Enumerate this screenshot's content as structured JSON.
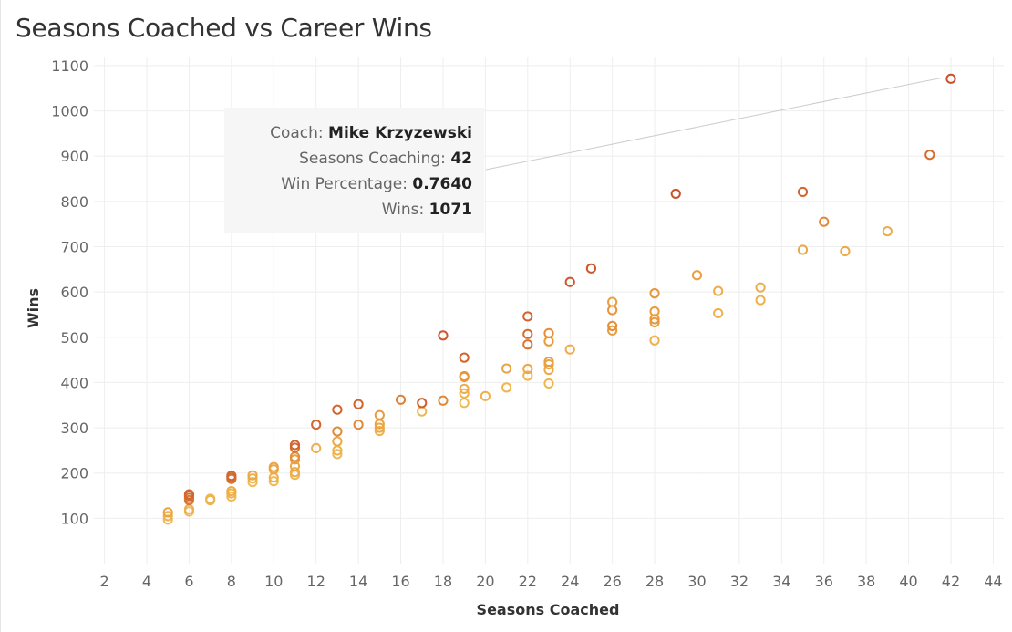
{
  "title": "Seasons Coached vs Career Wins",
  "chart_data": {
    "type": "scatter",
    "title": "Seasons Coached vs Career Wins",
    "xlabel": "Seasons Coached",
    "ylabel": "Wins",
    "xlim": [
      1.5,
      44.5
    ],
    "ylim": [
      0,
      1120
    ],
    "x_ticks": [
      2,
      4,
      6,
      8,
      10,
      12,
      14,
      16,
      18,
      20,
      22,
      24,
      26,
      28,
      30,
      32,
      34,
      36,
      38,
      40,
      42,
      44
    ],
    "y_ticks": [
      100,
      200,
      300,
      400,
      500,
      600,
      700,
      800,
      900,
      1000,
      1100
    ],
    "grid": true,
    "legend": "none",
    "marker": "hollow circle",
    "color_encoding": "win percentage (light yellow = lower, dark red = higher)",
    "colors": {
      "low": "#f2c35a",
      "mid": "#e8963a",
      "high": "#c9502a"
    },
    "points": [
      {
        "x": 5,
        "y": 97,
        "c": 0.1
      },
      {
        "x": 5,
        "y": 105,
        "c": 0.2
      },
      {
        "x": 5,
        "y": 113,
        "c": 0.35
      },
      {
        "x": 6,
        "y": 115,
        "c": 0.1
      },
      {
        "x": 6,
        "y": 120,
        "c": 0.2
      },
      {
        "x": 6,
        "y": 140,
        "c": 0.7
      },
      {
        "x": 6,
        "y": 145,
        "c": 0.75
      },
      {
        "x": 6,
        "y": 150,
        "c": 0.8
      },
      {
        "x": 6,
        "y": 153,
        "c": 0.85
      },
      {
        "x": 7,
        "y": 140,
        "c": 0.2
      },
      {
        "x": 7,
        "y": 143,
        "c": 0.15
      },
      {
        "x": 8,
        "y": 148,
        "c": 0.1
      },
      {
        "x": 8,
        "y": 155,
        "c": 0.2
      },
      {
        "x": 8,
        "y": 160,
        "c": 0.25
      },
      {
        "x": 8,
        "y": 187,
        "c": 0.75
      },
      {
        "x": 8,
        "y": 190,
        "c": 0.8
      },
      {
        "x": 8,
        "y": 194,
        "c": 0.85
      },
      {
        "x": 9,
        "y": 180,
        "c": 0.1
      },
      {
        "x": 9,
        "y": 188,
        "c": 0.2
      },
      {
        "x": 9,
        "y": 195,
        "c": 0.3
      },
      {
        "x": 10,
        "y": 182,
        "c": 0.1
      },
      {
        "x": 10,
        "y": 190,
        "c": 0.2
      },
      {
        "x": 10,
        "y": 208,
        "c": 0.3
      },
      {
        "x": 10,
        "y": 213,
        "c": 0.35
      },
      {
        "x": 11,
        "y": 196,
        "c": 0.15
      },
      {
        "x": 11,
        "y": 202,
        "c": 0.25
      },
      {
        "x": 11,
        "y": 215,
        "c": 0.3
      },
      {
        "x": 11,
        "y": 230,
        "c": 0.4
      },
      {
        "x": 11,
        "y": 236,
        "c": 0.55
      },
      {
        "x": 11,
        "y": 256,
        "c": 0.8
      },
      {
        "x": 11,
        "y": 262,
        "c": 0.85
      },
      {
        "x": 12,
        "y": 255,
        "c": 0.2
      },
      {
        "x": 12,
        "y": 307,
        "c": 0.85
      },
      {
        "x": 13,
        "y": 242,
        "c": 0.1
      },
      {
        "x": 13,
        "y": 250,
        "c": 0.2
      },
      {
        "x": 13,
        "y": 270,
        "c": 0.3
      },
      {
        "x": 13,
        "y": 292,
        "c": 0.6
      },
      {
        "x": 13,
        "y": 340,
        "c": 0.85
      },
      {
        "x": 14,
        "y": 307,
        "c": 0.6
      },
      {
        "x": 14,
        "y": 352,
        "c": 0.85
      },
      {
        "x": 15,
        "y": 293,
        "c": 0.2
      },
      {
        "x": 15,
        "y": 300,
        "c": 0.3
      },
      {
        "x": 15,
        "y": 308,
        "c": 0.35
      },
      {
        "x": 15,
        "y": 328,
        "c": 0.45
      },
      {
        "x": 16,
        "y": 362,
        "c": 0.65
      },
      {
        "x": 17,
        "y": 336,
        "c": 0.15
      },
      {
        "x": 17,
        "y": 355,
        "c": 0.9
      },
      {
        "x": 18,
        "y": 360,
        "c": 0.6
      },
      {
        "x": 18,
        "y": 504,
        "c": 0.95
      },
      {
        "x": 19,
        "y": 355,
        "c": 0.1
      },
      {
        "x": 19,
        "y": 376,
        "c": 0.2
      },
      {
        "x": 19,
        "y": 386,
        "c": 0.25
      },
      {
        "x": 19,
        "y": 412,
        "c": 0.45
      },
      {
        "x": 19,
        "y": 414,
        "c": 0.5
      },
      {
        "x": 19,
        "y": 455,
        "c": 0.85
      },
      {
        "x": 20,
        "y": 370,
        "c": 0.2
      },
      {
        "x": 21,
        "y": 389,
        "c": 0.15
      },
      {
        "x": 21,
        "y": 431,
        "c": 0.35
      },
      {
        "x": 22,
        "y": 415,
        "c": 0.15
      },
      {
        "x": 22,
        "y": 430,
        "c": 0.3
      },
      {
        "x": 22,
        "y": 484,
        "c": 0.75
      },
      {
        "x": 22,
        "y": 507,
        "c": 0.8
      },
      {
        "x": 22,
        "y": 546,
        "c": 0.85
      },
      {
        "x": 23,
        "y": 398,
        "c": 0.15
      },
      {
        "x": 23,
        "y": 428,
        "c": 0.3
      },
      {
        "x": 23,
        "y": 440,
        "c": 0.35
      },
      {
        "x": 23,
        "y": 446,
        "c": 0.4
      },
      {
        "x": 23,
        "y": 491,
        "c": 0.45
      },
      {
        "x": 23,
        "y": 509,
        "c": 0.55
      },
      {
        "x": 24,
        "y": 473,
        "c": 0.25
      },
      {
        "x": 24,
        "y": 622,
        "c": 0.95
      },
      {
        "x": 25,
        "y": 652,
        "c": 0.95
      },
      {
        "x": 26,
        "y": 515,
        "c": 0.45
      },
      {
        "x": 26,
        "y": 525,
        "c": 0.55
      },
      {
        "x": 26,
        "y": 560,
        "c": 0.5
      },
      {
        "x": 26,
        "y": 578,
        "c": 0.4
      },
      {
        "x": 28,
        "y": 493,
        "c": 0.2
      },
      {
        "x": 28,
        "y": 533,
        "c": 0.45
      },
      {
        "x": 28,
        "y": 540,
        "c": 0.5
      },
      {
        "x": 28,
        "y": 557,
        "c": 0.45
      },
      {
        "x": 28,
        "y": 597,
        "c": 0.5
      },
      {
        "x": 29,
        "y": 817,
        "c": 1.0
      },
      {
        "x": 30,
        "y": 637,
        "c": 0.4
      },
      {
        "x": 31,
        "y": 553,
        "c": 0.2
      },
      {
        "x": 31,
        "y": 602,
        "c": 0.25
      },
      {
        "x": 33,
        "y": 582,
        "c": 0.2
      },
      {
        "x": 33,
        "y": 610,
        "c": 0.25
      },
      {
        "x": 35,
        "y": 693,
        "c": 0.3
      },
      {
        "x": 35,
        "y": 821,
        "c": 0.85
      },
      {
        "x": 36,
        "y": 755,
        "c": 0.6
      },
      {
        "x": 37,
        "y": 690,
        "c": 0.3
      },
      {
        "x": 39,
        "y": 734,
        "c": 0.25
      },
      {
        "x": 41,
        "y": 903,
        "c": 0.8
      },
      {
        "x": 42,
        "y": 1071,
        "c": 1.0
      }
    ],
    "highlighted_point": {
      "x": 42,
      "y": 1071
    },
    "tooltip": {
      "rows": [
        {
          "label": "Coach:",
          "value": "Mike Krzyzewski"
        },
        {
          "label": "Seasons Coaching:",
          "value": "42"
        },
        {
          "label": "Win Percentage:",
          "value": "0.7640"
        },
        {
          "label": "Wins:",
          "value": "1071"
        }
      ]
    }
  }
}
